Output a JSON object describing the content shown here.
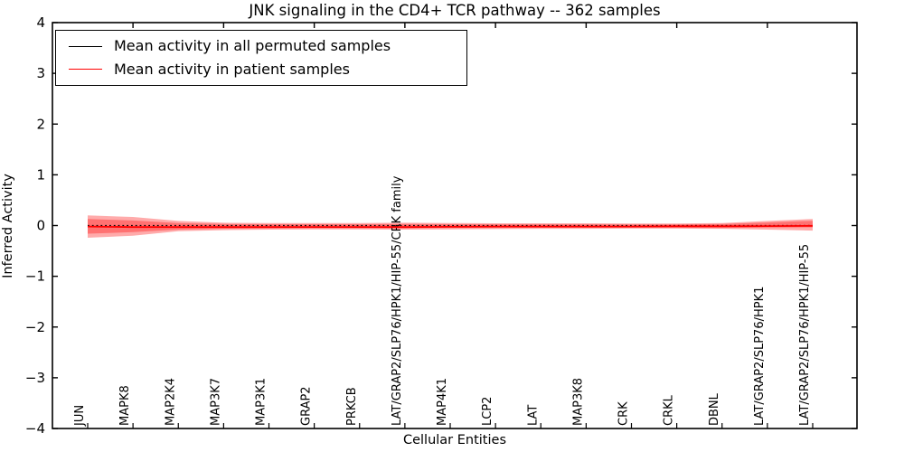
{
  "chart_data": {
    "type": "line",
    "title": "JNK signaling in the CD4+ TCR pathway -- 362 samples",
    "xlabel": "Cellular Entities",
    "ylabel": "Inferred Activity",
    "ylim": [
      -4,
      4
    ],
    "yticks": [
      4,
      3,
      2,
      1,
      0,
      -1,
      -2,
      -3,
      -4
    ],
    "grid": false,
    "legend_position": "upper left",
    "categories": [
      "JUN",
      "MAPK8",
      "MAP2K4",
      "MAP3K7",
      "MAP3K1",
      "GRAP2",
      "PRKCB",
      "LAT/GRAP2/SLP76/HPK1/HIP-55/CRK family",
      "MAP4K1",
      "LCP2",
      "LAT",
      "MAP3K8",
      "CRK",
      "CRKL",
      "DBNL",
      "LAT/GRAP2/SLP76/HPK1",
      "LAT/GRAP2/SLP76/HPK1/HIP-55"
    ],
    "series": [
      {
        "name": "Mean activity in all permuted samples",
        "color": "#000000",
        "line_style": "dotted",
        "values": [
          0,
          0,
          0,
          0,
          0,
          0,
          0,
          0,
          0,
          0,
          0,
          0,
          0,
          0,
          0,
          0,
          0
        ]
      },
      {
        "name": "Mean activity in patient samples",
        "color": "#ff0000",
        "line_style": "solid",
        "values": [
          -0.02,
          -0.03,
          -0.03,
          -0.03,
          -0.03,
          -0.03,
          -0.03,
          -0.03,
          -0.025,
          -0.02,
          -0.02,
          -0.02,
          -0.02,
          -0.015,
          -0.015,
          -0.01,
          -0.005
        ]
      }
    ],
    "uncertainty_bands": [
      {
        "name": "patient-outer-band",
        "color": "#ff0000",
        "opacity": 0.33,
        "top": [
          0.2,
          0.17,
          0.09,
          0.055,
          0.05,
          0.05,
          0.05,
          0.055,
          0.05,
          0.045,
          0.045,
          0.045,
          0.04,
          0.04,
          0.05,
          0.09,
          0.13
        ],
        "bottom": [
          -0.24,
          -0.2,
          -0.11,
          -0.09,
          -0.08,
          -0.075,
          -0.075,
          -0.08,
          -0.075,
          -0.07,
          -0.065,
          -0.065,
          -0.06,
          -0.06,
          -0.065,
          -0.08,
          -0.1
        ]
      },
      {
        "name": "patient-inner-band",
        "color": "#ff0000",
        "opacity": 0.33,
        "top": [
          0.13,
          0.1,
          0.05,
          0.03,
          0.027,
          0.027,
          0.027,
          0.03,
          0.027,
          0.025,
          0.025,
          0.025,
          0.022,
          0.022,
          0.03,
          0.06,
          0.095
        ],
        "bottom": [
          -0.16,
          -0.13,
          -0.08,
          -0.062,
          -0.055,
          -0.05,
          -0.05,
          -0.055,
          -0.05,
          -0.048,
          -0.045,
          -0.045,
          -0.042,
          -0.042,
          -0.048,
          -0.04,
          -0.035
        ]
      }
    ],
    "legend": {
      "entries": [
        {
          "label": "Mean activity in all permuted samples",
          "color": "#000000"
        },
        {
          "label": "Mean activity in patient samples",
          "color": "#ff0000"
        }
      ]
    }
  }
}
